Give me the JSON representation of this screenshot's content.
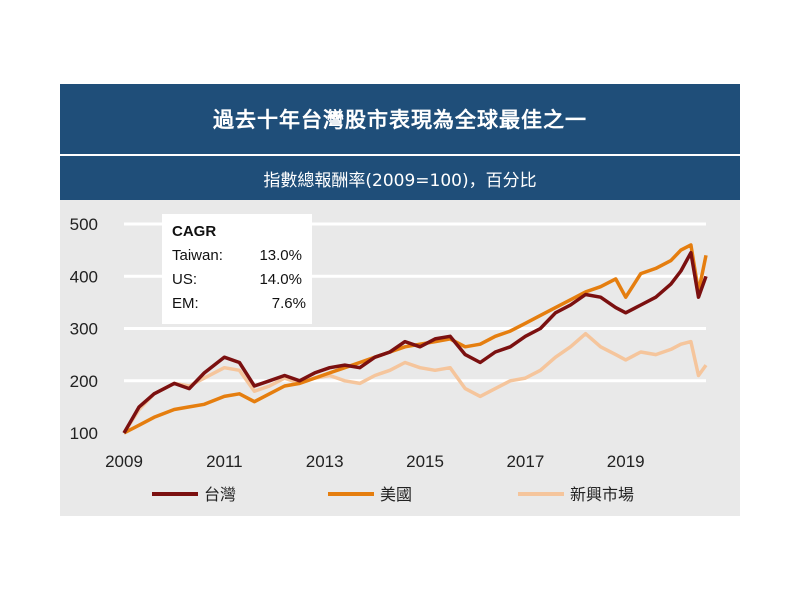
{
  "title": "過去十年台灣股市表現為全球最佳之一",
  "subtitle": "指數總報酬率(2009=100)，百分比",
  "cagr": {
    "heading": "CAGR",
    "rows": [
      {
        "label": "Taiwan:",
        "value": "13.0%"
      },
      {
        "label": "US:",
        "value": "14.0%"
      },
      {
        "label": "EM:",
        "value": "7.6%"
      }
    ]
  },
  "chart_data": {
    "type": "line",
    "ylim": [
      100,
      500
    ],
    "yticks": [
      "100",
      "200",
      "300",
      "400",
      "500"
    ],
    "xlim": [
      2009.0,
      2020.6
    ],
    "xticks": [
      "2009",
      "2011",
      "2013",
      "2015",
      "2017",
      "2019"
    ],
    "grid": true,
    "legend_position": "bottom",
    "series": [
      {
        "name": "台灣",
        "color": "#7b1010",
        "x": [
          2009.0,
          2009.3,
          2009.6,
          2010.0,
          2010.3,
          2010.6,
          2011.0,
          2011.3,
          2011.6,
          2011.9,
          2012.2,
          2012.5,
          2012.8,
          2013.1,
          2013.4,
          2013.7,
          2014.0,
          2014.3,
          2014.6,
          2014.9,
          2015.2,
          2015.5,
          2015.8,
          2016.1,
          2016.4,
          2016.7,
          2017.0,
          2017.3,
          2017.6,
          2017.9,
          2018.2,
          2018.5,
          2018.8,
          2019.0,
          2019.3,
          2019.6,
          2019.9,
          2020.1,
          2020.3,
          2020.45,
          2020.6
        ],
        "values": [
          100,
          150,
          175,
          195,
          185,
          215,
          245,
          235,
          190,
          200,
          210,
          200,
          215,
          225,
          230,
          225,
          245,
          255,
          275,
          265,
          280,
          285,
          250,
          235,
          255,
          265,
          285,
          300,
          330,
          345,
          365,
          360,
          340,
          330,
          345,
          360,
          385,
          410,
          445,
          360,
          400
        ]
      },
      {
        "name": "美國",
        "color": "#e57e0f",
        "x": [
          2009.0,
          2009.3,
          2009.6,
          2010.0,
          2010.3,
          2010.6,
          2011.0,
          2011.3,
          2011.6,
          2011.9,
          2012.2,
          2012.5,
          2012.8,
          2013.1,
          2013.4,
          2013.7,
          2014.0,
          2014.3,
          2014.6,
          2014.9,
          2015.2,
          2015.5,
          2015.8,
          2016.1,
          2016.4,
          2016.7,
          2017.0,
          2017.3,
          2017.6,
          2017.9,
          2018.2,
          2018.5,
          2018.8,
          2019.0,
          2019.3,
          2019.6,
          2019.9,
          2020.1,
          2020.3,
          2020.45,
          2020.6
        ],
        "values": [
          100,
          115,
          130,
          145,
          150,
          155,
          170,
          175,
          160,
          175,
          190,
          195,
          205,
          215,
          225,
          235,
          245,
          255,
          265,
          270,
          275,
          280,
          265,
          270,
          285,
          295,
          310,
          325,
          340,
          355,
          370,
          380,
          395,
          360,
          405,
          415,
          430,
          450,
          460,
          370,
          440
        ]
      },
      {
        "name": "新興市場",
        "color": "#f5c59c",
        "x": [
          2009.0,
          2009.3,
          2009.6,
          2010.0,
          2010.3,
          2010.6,
          2011.0,
          2011.3,
          2011.6,
          2011.9,
          2012.2,
          2012.5,
          2012.8,
          2013.1,
          2013.4,
          2013.7,
          2014.0,
          2014.3,
          2014.6,
          2014.9,
          2015.2,
          2015.5,
          2015.8,
          2016.1,
          2016.4,
          2016.7,
          2017.0,
          2017.3,
          2017.6,
          2017.9,
          2018.2,
          2018.5,
          2018.8,
          2019.0,
          2019.3,
          2019.6,
          2019.9,
          2020.1,
          2020.3,
          2020.45,
          2020.6
        ],
        "values": [
          100,
          145,
          175,
          195,
          190,
          205,
          225,
          220,
          180,
          190,
          205,
          195,
          205,
          210,
          200,
          195,
          210,
          220,
          235,
          225,
          220,
          225,
          185,
          170,
          185,
          200,
          205,
          220,
          245,
          265,
          290,
          265,
          250,
          240,
          255,
          250,
          260,
          270,
          275,
          210,
          230
        ]
      }
    ]
  }
}
